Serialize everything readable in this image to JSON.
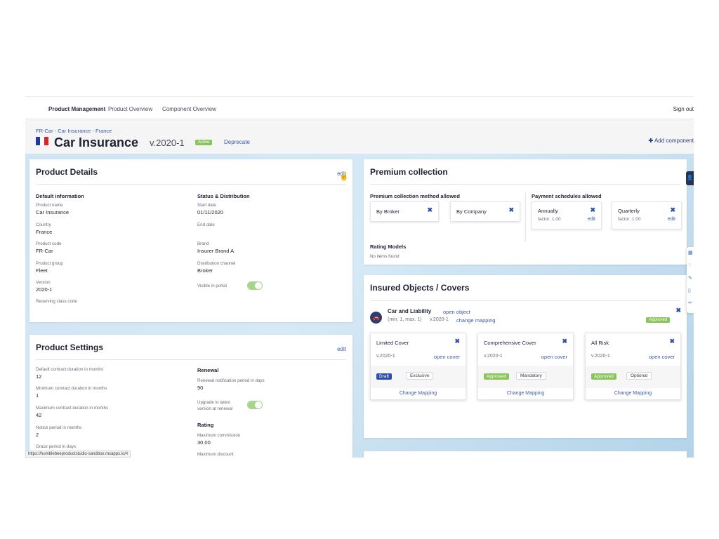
{
  "nav": {
    "items": [
      "Product Management",
      "Product Overview",
      "Component Overview"
    ],
    "sign_out": "Sign out"
  },
  "header": {
    "breadcrumb": "FR-Car - Car Insurance - France",
    "flag_colors": [
      "#1d3aa0",
      "#ffffff",
      "#e0232a"
    ],
    "title": "Car Insurance",
    "version": "v.2020-1",
    "status_badge": "Active",
    "deprecate": "Deprecate",
    "add_component": "Add component"
  },
  "product_details": {
    "title": "Product Details",
    "edit": "edit",
    "default_info": {
      "heading": "Default information",
      "fields": [
        {
          "label": "Product name",
          "value": "Car Insurance"
        },
        {
          "label": "Country",
          "value": "France"
        },
        {
          "label": "Product code",
          "value": "FR-Car"
        },
        {
          "label": "Product group",
          "value": "Fleet"
        },
        {
          "label": "Version",
          "value": "2020-1"
        },
        {
          "label": "Reserving class code",
          "value": ""
        }
      ]
    },
    "status_dist": {
      "heading": "Status & Distribution",
      "fields": [
        {
          "label": "Start date",
          "value": "01/11/2020"
        },
        {
          "label": "End date",
          "value": ""
        },
        {
          "label": "Brand",
          "value": "Insurer Brand A"
        },
        {
          "label": "Distribution channel",
          "value": "Broker"
        }
      ],
      "visible_label": "Visible in portal",
      "visible_on": true
    }
  },
  "product_settings": {
    "title": "Product Settings",
    "edit": "edit",
    "left_fields": [
      {
        "label": "Default contract duration in months",
        "value": "12"
      },
      {
        "label": "Minimum contract duration in months",
        "value": "1"
      },
      {
        "label": "Maximum contract duration in months",
        "value": "42"
      },
      {
        "label": "Notice period in months",
        "value": "2"
      },
      {
        "label": "Grace period in days",
        "value": ""
      }
    ],
    "renewal": {
      "heading": "Renewal",
      "notification_label": "Renewal notification period in days",
      "notification_value": "90",
      "upgrade_label_1": "Upgrade to latest",
      "upgrade_label_2": "version at renewal",
      "upgrade_on": true
    },
    "rating": {
      "heading": "Rating",
      "max_commission_label": "Maximum commission",
      "max_commission_value": "30.00",
      "max_discount_label": "Maximum discount"
    }
  },
  "premium_collection": {
    "title": "Premium collection",
    "methods_heading": "Premium collection method allowed",
    "methods": [
      "By Broker",
      "By Company"
    ],
    "schedules_heading": "Payment schedules allowed",
    "schedules": [
      {
        "name": "Annually",
        "factor": "factor: 1.00",
        "edit": "edit"
      },
      {
        "name": "Quarterly",
        "factor": "factor: 1.00",
        "edit": "edit"
      }
    ],
    "rating_models_heading": "Rating Models",
    "rating_models_empty": "No items found"
  },
  "insured_objects": {
    "title": "Insured Objects / Covers",
    "object": {
      "name": "Car and Liability",
      "open": "open object",
      "meta": "(min. 1, max. 1)",
      "version": "v.2020-1",
      "change_mapping": "change mapping",
      "status": "Approved"
    },
    "covers": [
      {
        "name": "Limited Cover",
        "version": "v.2020-1",
        "open": "open cover",
        "status": "Draft",
        "status_color": "#2d4ea8",
        "tag": "Exclusive",
        "change": "Change Mapping"
      },
      {
        "name": "Comprehensive Cover",
        "version": "v.2020-1",
        "open": "open cover",
        "status": "Approved",
        "status_color": "#8ac45a",
        "tag": "Mandatory",
        "change": "Change Mapping"
      },
      {
        "name": "All Risk",
        "version": "v.2020-1",
        "open": "open cover",
        "status": "Approved",
        "status_color": "#8ac45a",
        "tag": "Optional",
        "change": "Change Mapping"
      }
    ]
  },
  "status_url": "https://humblebeeproductstudio-sandbox.mxapps.io/#"
}
